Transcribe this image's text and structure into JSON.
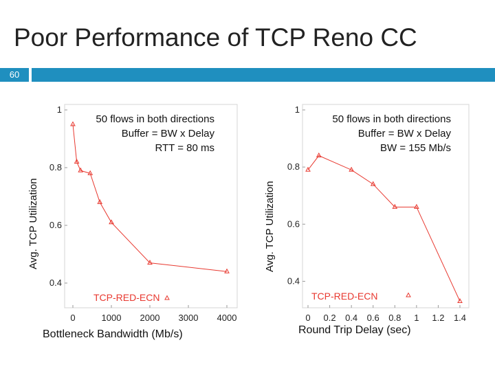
{
  "slide": {
    "title": "Poor Performance of TCP Reno CC",
    "slide_number": "60",
    "accent_color": "#1f8fbf"
  },
  "chart_data": [
    {
      "type": "line",
      "xlabel": "Bottleneck Bandwidth (Mb/s)",
      "ylabel": "Avg. TCP Utilization",
      "annotation": [
        "50 flows in both directions",
        "Buffer = BW x Delay",
        "RTT = 80 ms"
      ],
      "xlim": [
        0,
        4000
      ],
      "ylim": [
        0.3,
        1.0
      ],
      "xticks": [
        0,
        1000,
        2000,
        3000,
        4000
      ],
      "yticks": [
        0.4,
        0.6,
        0.8,
        1
      ],
      "grid": false,
      "legend_position": "bottom-center",
      "series": [
        {
          "name": "TCP-RED-ECN",
          "color": "#e8382f",
          "marker": "triangle",
          "x": [
            0,
            100,
            200,
            450,
            700,
            1000,
            2000,
            4000
          ],
          "y": [
            0.95,
            0.82,
            0.79,
            0.78,
            0.68,
            0.61,
            0.47,
            0.44
          ]
        }
      ]
    },
    {
      "type": "line",
      "xlabel": "Round Trip Delay (sec)",
      "ylabel": "Avg. TCP Utilization",
      "annotation": [
        "50 flows in both directions",
        "Buffer = BW x Delay",
        "BW = 155 Mb/s"
      ],
      "xlim": [
        0,
        1.4
      ],
      "ylim": [
        0.3,
        1.0
      ],
      "xticks": [
        0,
        0.2,
        0.4,
        0.6,
        0.8,
        1,
        1.2,
        1.4
      ],
      "yticks": [
        0.4,
        0.6,
        0.8,
        1
      ],
      "grid": false,
      "legend_position": "bottom-center",
      "series": [
        {
          "name": "TCP-RED-ECN",
          "color": "#e8382f",
          "marker": "triangle",
          "x": [
            0,
            0.1,
            0.4,
            0.6,
            0.8,
            1.0,
            1.4
          ],
          "y": [
            0.79,
            0.84,
            0.79,
            0.74,
            0.66,
            0.66,
            0.33
          ]
        }
      ]
    }
  ]
}
